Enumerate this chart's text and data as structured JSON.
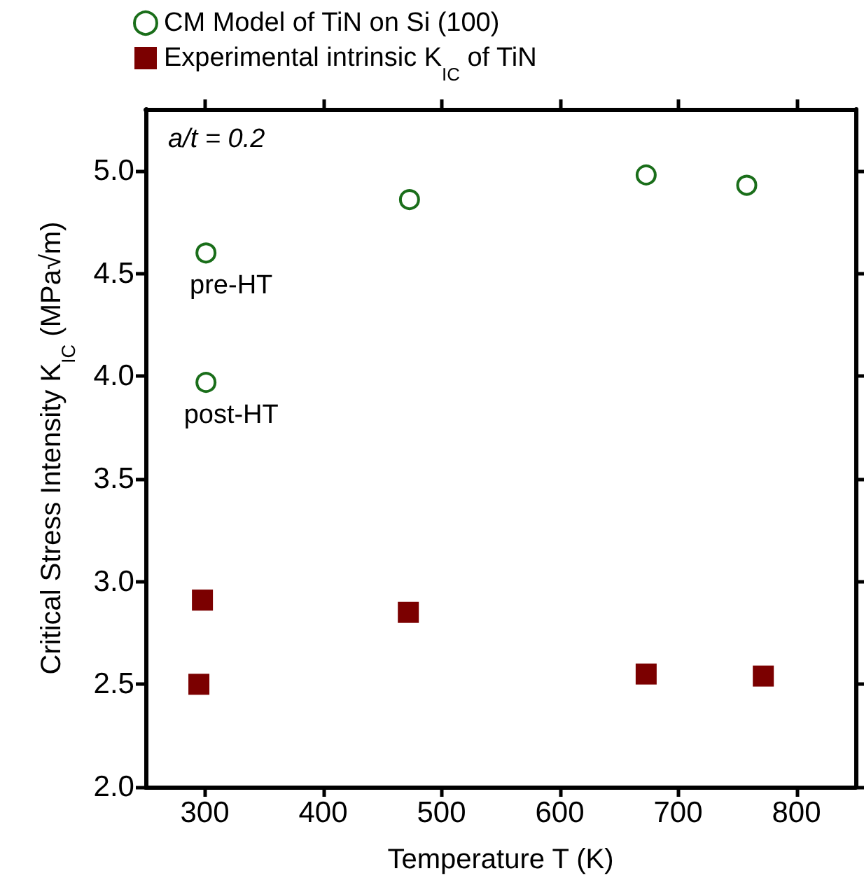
{
  "chart_data": {
    "type": "scatter",
    "xlabel": "Temperature T (K)",
    "ylabel": "Critical Stress Intensity K$_{IC}$ (MPa√m)",
    "xlim": [
      250,
      850
    ],
    "xticks": [
      300,
      400,
      500,
      600,
      700,
      800
    ],
    "ylim": [
      2.0,
      5.3
    ],
    "yticks": [
      {
        "value": 2,
        "label": "2.0"
      },
      {
        "value": 2.5,
        "label": "2.5"
      },
      {
        "value": 3,
        "label": "3.0"
      },
      {
        "value": 3.5,
        "label": "3.5"
      },
      {
        "value": 4,
        "label": "4.0"
      },
      {
        "value": 4.5,
        "label": "4.5"
      },
      {
        "value": 5,
        "label": "5.0"
      }
    ],
    "series": [
      {
        "name": "CM Model of TiN on Si (100)",
        "color": "#1a6e1a",
        "marker": "circle",
        "x": [
          301,
          301,
          473,
          673,
          758
        ],
        "values": [
          4.6,
          3.97,
          4.86,
          4.98,
          4.93
        ]
      },
      {
        "name": "Experimental intrinsic K$_{IC}$ of TiN",
        "color": "#7b0000",
        "marker": "square",
        "x": [
          298,
          295,
          472,
          673,
          772
        ],
        "values": [
          2.91,
          2.5,
          2.85,
          2.55,
          2.54
        ]
      }
    ],
    "annotations": [
      "a/t = 0.2",
      {
        "text": "pre-HT",
        "x": 301,
        "y": 4.6
      },
      {
        "text": "post-HT",
        "x": 301,
        "y": 3.97
      }
    ],
    "legend": "top",
    "grid": false
  }
}
